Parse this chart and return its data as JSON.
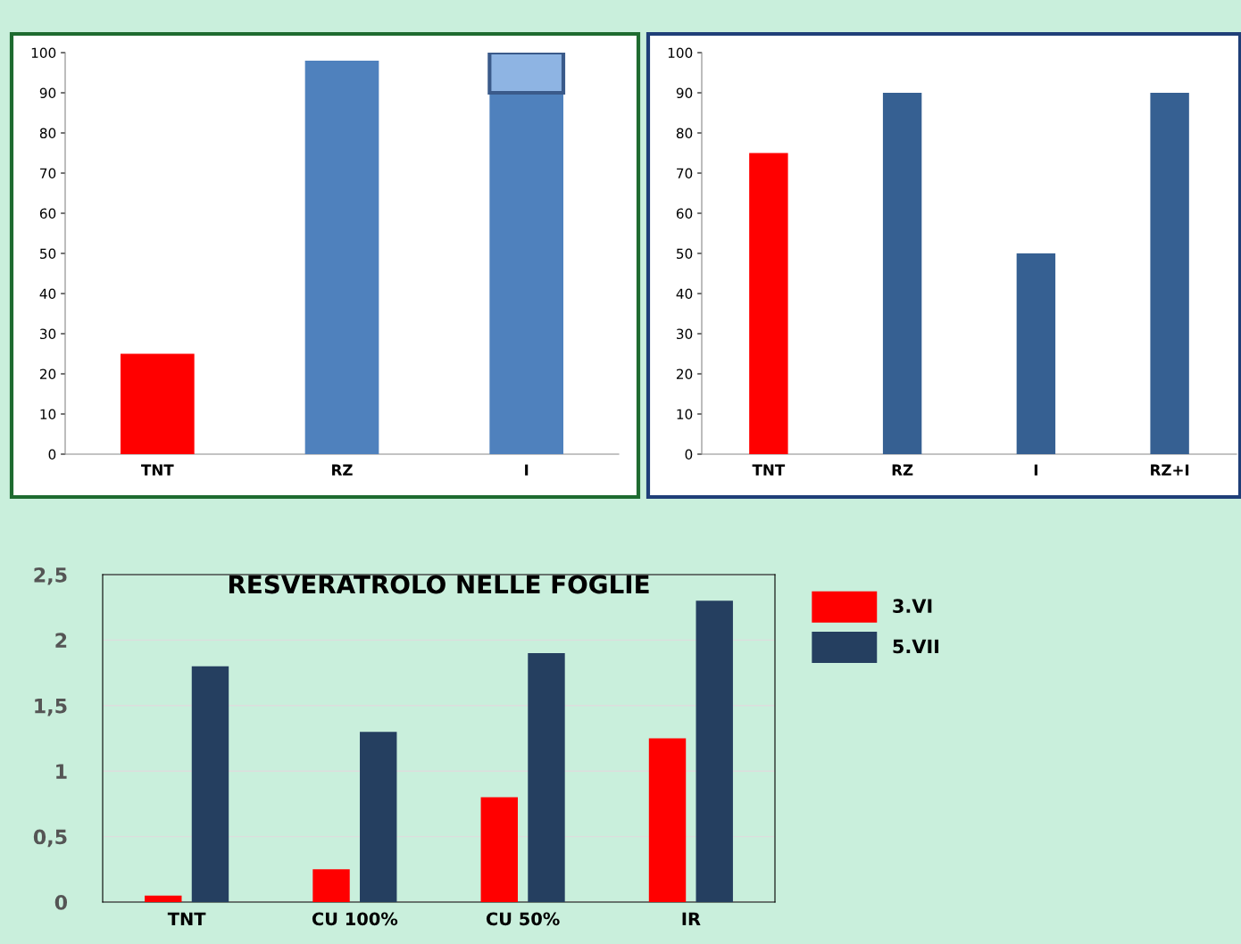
{
  "chart_data": [
    {
      "type": "bar",
      "stacked": true,
      "categories": [
        "TNT",
        "RZ",
        "I"
      ],
      "series": [
        {
          "colors": [
            "#ff0000",
            "#4f81bd",
            "#4f81bd"
          ],
          "values": [
            25,
            98,
            90
          ]
        },
        {
          "color": "#8eb4e3",
          "values": [
            null,
            null,
            10
          ]
        }
      ],
      "ylim": [
        0,
        100
      ],
      "yticks": [
        0,
        10,
        20,
        30,
        40,
        50,
        60,
        70,
        80,
        90,
        100
      ],
      "grid": false,
      "legend": false
    },
    {
      "type": "bar",
      "categories": [
        "TNT",
        "RZ",
        "I",
        "RZ+I"
      ],
      "series": [
        {
          "colors": [
            "#ff0000",
            "#366092",
            "#366092",
            "#366092"
          ],
          "values": [
            75,
            90,
            50,
            90
          ]
        }
      ],
      "ylim": [
        0,
        100
      ],
      "yticks": [
        0,
        10,
        20,
        30,
        40,
        50,
        60,
        70,
        80,
        90,
        100
      ],
      "grid": false,
      "legend": false
    },
    {
      "type": "bar",
      "title": "RESVERATROLO NELLE FOGLIE",
      "categories": [
        "TNT",
        "CU 100%",
        "CU 50%",
        "IR"
      ],
      "series": [
        {
          "name": "3.VI",
          "color": "#ff0000",
          "values": [
            0.05,
            0.25,
            0.8,
            1.25
          ]
        },
        {
          "name": "5.VII",
          "color": "#253f60",
          "values": [
            1.8,
            1.3,
            1.9,
            2.3
          ]
        }
      ],
      "ylim": [
        0,
        2.5
      ],
      "yticks": [
        0,
        {
          "value": 0.5,
          "label": "0,5"
        },
        1,
        {
          "value": 1.5,
          "label": "1,5"
        },
        2,
        {
          "value": 2.5,
          "label": "2,5"
        }
      ],
      "grid": "y",
      "legend": "right"
    }
  ]
}
